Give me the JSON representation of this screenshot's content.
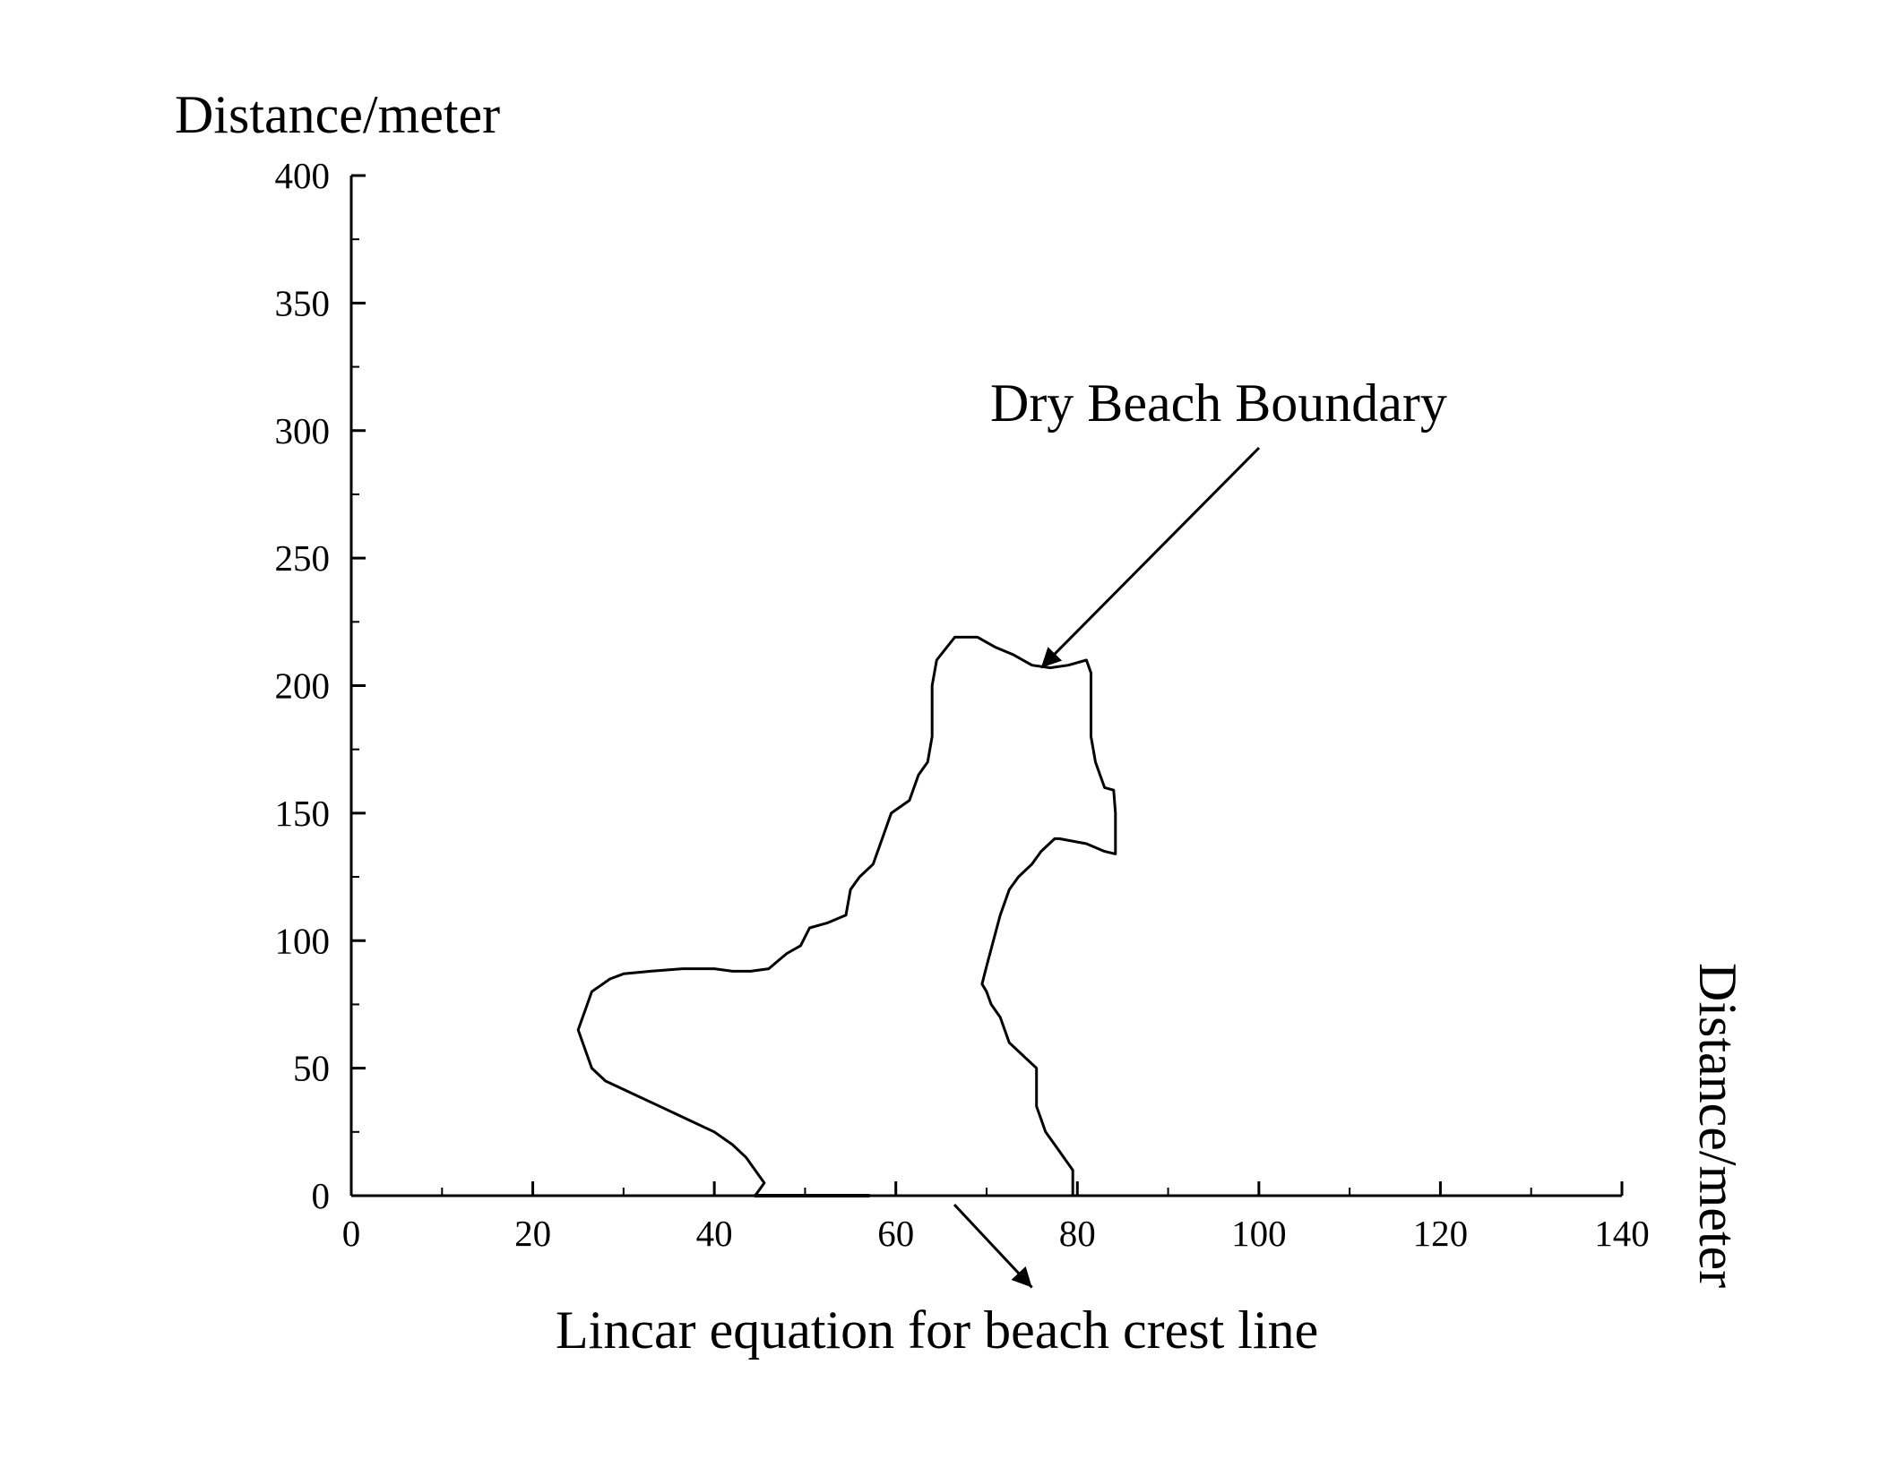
{
  "chart_data": {
    "type": "line",
    "title": "",
    "ylabel": "Distance/meter",
    "xlabel": "Distance/meter",
    "xlim": [
      0,
      140
    ],
    "ylim": [
      0,
      400
    ],
    "x_ticks": [
      0,
      20,
      40,
      60,
      80,
      100,
      120,
      140
    ],
    "y_ticks": [
      0,
      50,
      100,
      150,
      200,
      250,
      300,
      350,
      400
    ],
    "x_tick_labels": [
      "0",
      "20",
      "40",
      "60",
      "80",
      "100",
      "120",
      "140"
    ],
    "y_tick_labels": [
      "0",
      "50",
      "100",
      "150",
      "200",
      "250",
      "300",
      "350",
      "400"
    ],
    "grid": false,
    "series": [
      {
        "name": "",
        "color": "#000000",
        "x": [
          44.5,
          45.5,
          44.5,
          43.5,
          42,
          40,
          37,
          34,
          31,
          28,
          26.5,
          26,
          25.5,
          25,
          26.5,
          28.5,
          30,
          33,
          36.5,
          40,
          42,
          44,
          46,
          47,
          48,
          49.5,
          50.5,
          52.5,
          54.5,
          55,
          56,
          57.5,
          58.5,
          59.5,
          61.5,
          62.5,
          63.5,
          64,
          64,
          64.5,
          66.5,
          69,
          71,
          73,
          75,
          77,
          79,
          81,
          81.5,
          81.5,
          81.5,
          81.5,
          82,
          82.5,
          83,
          84,
          84.2,
          84.2,
          83,
          81,
          78,
          77.5,
          76,
          75,
          73.5,
          72.5,
          71.5,
          70,
          69.5,
          70,
          70.5,
          71.5,
          72.5,
          74,
          75.5,
          75.5,
          75.5,
          76,
          76.5,
          77.5,
          78.5,
          79.5,
          79.5
        ],
        "y": [
          0,
          5,
          10,
          15,
          20,
          25,
          30,
          35,
          40,
          45,
          50,
          55,
          60,
          65,
          80,
          85,
          87,
          88,
          89,
          89,
          88,
          88,
          89,
          92,
          95,
          98,
          105,
          107,
          110,
          120,
          125,
          130,
          140,
          150,
          155,
          165,
          170,
          180,
          200,
          210,
          219,
          219,
          215,
          212,
          208,
          207,
          208,
          210,
          205,
          200,
          190,
          180,
          170,
          165,
          160,
          159,
          150,
          134,
          135,
          138,
          140,
          140,
          135,
          130,
          125,
          120,
          110,
          90,
          83,
          80,
          75,
          70,
          60,
          55,
          50,
          40,
          35,
          30,
          25,
          20,
          15,
          10,
          0
        ]
      },
      {
        "name": "",
        "color": "#000000",
        "x": [
          44.5,
          57
        ],
        "y": [
          0,
          0
        ]
      }
    ],
    "annotations": [
      {
        "text": "Dry Beach Boundary",
        "target": [
          76,
          207
        ]
      },
      {
        "text": "Lincar equation for beach crest line",
        "target": [
          75,
          -36
        ]
      }
    ]
  }
}
